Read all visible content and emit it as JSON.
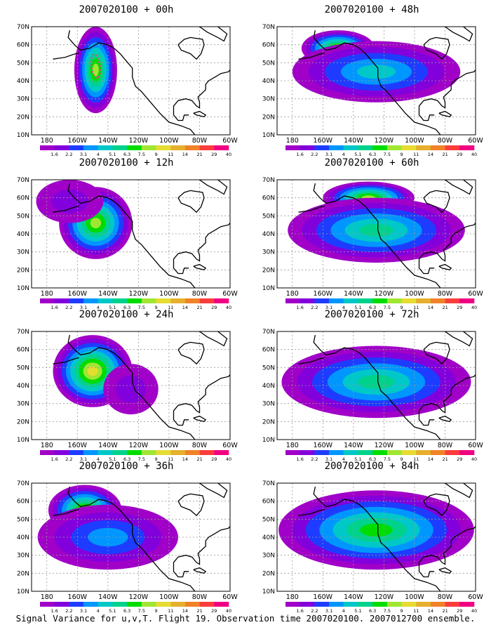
{
  "caption": "Signal Variance for u,v,T. Flight 19. Observation time 2007020100. 2007012700 ensemble.",
  "lat_ticks": [
    "10N",
    "20N",
    "30N",
    "40N",
    "50N",
    "60N",
    "70N"
  ],
  "lon_ticks": [
    "180",
    "160W",
    "140W",
    "120W",
    "100W",
    "80W",
    "60W"
  ],
  "colorbar": {
    "labels": [
      "1.6",
      "2.2",
      "3.1",
      "4",
      "5.1",
      "6.3",
      "7.5",
      "9",
      "11",
      "14",
      "21",
      "29",
      "40"
    ],
    "colors": [
      "#a000c8",
      "#8200dc",
      "#1e3cff",
      "#0096ff",
      "#00c8c8",
      "#00d28c",
      "#00dc00",
      "#a0e632",
      "#e6dc32",
      "#e6af2d",
      "#f08228",
      "#fa3c3c",
      "#f00082"
    ]
  },
  "panels": [
    {
      "title": "2007020100 + 00h",
      "lead_hours": 0,
      "observation_track": true,
      "blobs": [
        {
          "lon": -148,
          "lat": 46,
          "rlon": 14,
          "rlat": 24,
          "max_level": 7
        }
      ]
    },
    {
      "title": "2007020100 + 12h",
      "lead_hours": 12,
      "observation_track": false,
      "blobs": [
        {
          "lon": -148,
          "lat": 46,
          "rlon": 24,
          "rlat": 20,
          "max_level": 7
        },
        {
          "lon": -165,
          "lat": 58,
          "rlon": 22,
          "rlat": 12,
          "max_level": 1
        }
      ]
    },
    {
      "title": "2007020100 + 24h",
      "lead_hours": 24,
      "observation_track": false,
      "blobs": [
        {
          "lon": -150,
          "lat": 48,
          "rlon": 26,
          "rlat": 20,
          "max_level": 8
        },
        {
          "lon": -125,
          "lat": 38,
          "rlon": 18,
          "rlat": 14,
          "max_level": 1
        }
      ]
    },
    {
      "title": "2007020100 + 36h",
      "lead_hours": 36,
      "observation_track": false,
      "blobs": [
        {
          "lon": -155,
          "lat": 55,
          "rlon": 24,
          "rlat": 14,
          "max_level": 7
        },
        {
          "lon": -140,
          "lat": 40,
          "rlon": 46,
          "rlat": 18,
          "max_level": 3
        }
      ]
    },
    {
      "title": "2007020100 + 48h",
      "lead_hours": 48,
      "observation_track": false,
      "blobs": [
        {
          "lon": -150,
          "lat": 58,
          "rlon": 24,
          "rlat": 10,
          "max_level": 7
        },
        {
          "lon": -125,
          "lat": 45,
          "rlon": 55,
          "rlat": 17,
          "max_level": 4
        }
      ]
    },
    {
      "title": "2007020100 + 60h",
      "lead_hours": 60,
      "observation_track": false,
      "blobs": [
        {
          "lon": -130,
          "lat": 60,
          "rlon": 30,
          "rlat": 9,
          "max_level": 7
        },
        {
          "lon": -125,
          "lat": 42,
          "rlon": 58,
          "rlat": 18,
          "max_level": 5
        }
      ]
    },
    {
      "title": "2007020100 + 72h",
      "lead_hours": 72,
      "observation_track": false,
      "blobs": [
        {
          "lon": -120,
          "lat": 48,
          "rlon": 22,
          "rlat": 12,
          "max_level": 8
        },
        {
          "lon": -125,
          "lat": 42,
          "rlon": 62,
          "rlat": 20,
          "max_level": 5
        }
      ]
    },
    {
      "title": "2007020100 + 84h",
      "lead_hours": 84,
      "observation_track": false,
      "blobs": [
        {
          "lon": -105,
          "lat": 43,
          "rlon": 18,
          "rlat": 9,
          "max_level": 9
        },
        {
          "lon": -125,
          "lat": 44,
          "rlon": 64,
          "rlat": 22,
          "max_level": 6
        }
      ]
    }
  ]
}
